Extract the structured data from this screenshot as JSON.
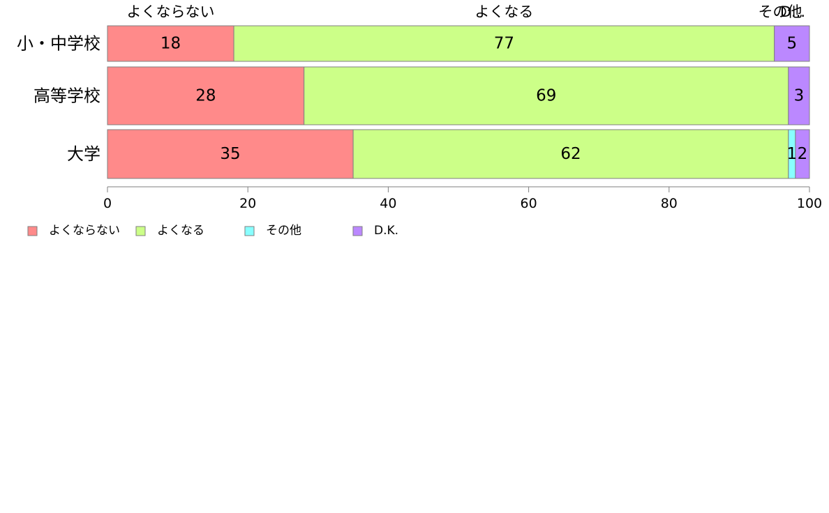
{
  "chart_data": {
    "type": "bar",
    "orientation": "horizontal",
    "stacked": true,
    "categories": [
      "小・中学校",
      "高等学校",
      "大学"
    ],
    "series": [
      {
        "name": "よくならない",
        "values": [
          18,
          28,
          35
        ],
        "color": "#FF8A8A"
      },
      {
        "name": "よくなる",
        "values": [
          77,
          69,
          62
        ],
        "color": "#CCFF88"
      },
      {
        "name": "その他",
        "values": [
          0,
          0,
          1
        ],
        "color": "#88FFFF"
      },
      {
        "name": "D.K.",
        "values": [
          5,
          3,
          2
        ],
        "color": "#BB88FF"
      }
    ],
    "segment_labels": [
      [
        "18",
        "77",
        "",
        "5"
      ],
      [
        "28",
        "69",
        "",
        "3"
      ],
      [
        "35",
        "62",
        "1",
        "2"
      ]
    ],
    "top_labels": [
      "よくならない",
      "よくなる",
      "その他",
      "D..."
    ],
    "xlim": [
      0,
      100
    ],
    "xticks": [
      0,
      20,
      40,
      60,
      80,
      100
    ],
    "xtick_labels": [
      "0",
      "20",
      "40",
      "60",
      "80",
      "100"
    ],
    "title": "",
    "xlabel": "",
    "ylabel": "",
    "legend_position": "bottom-left",
    "grid": false
  }
}
